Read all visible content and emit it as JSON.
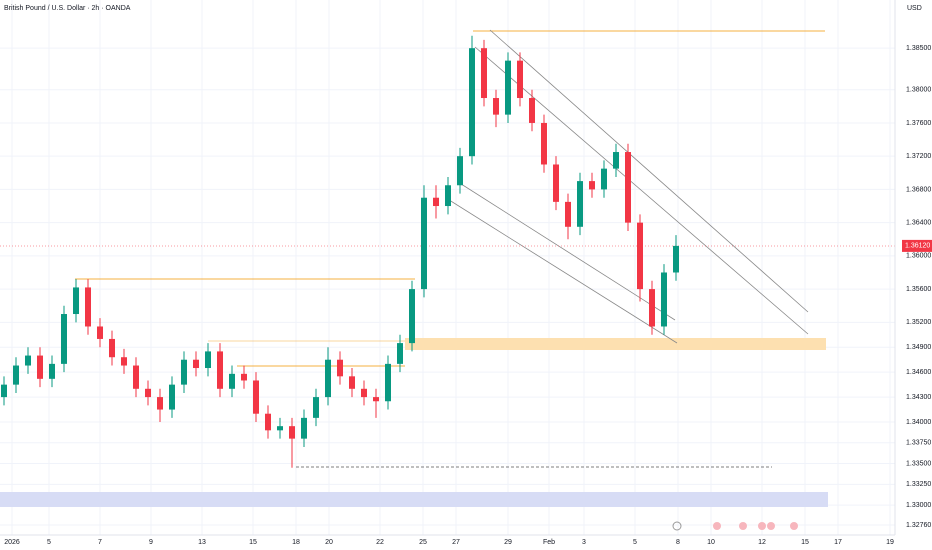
{
  "chart_data": {
    "type": "candlestick",
    "title": "British Pound / U.S. Dollar · 2h · OANDA",
    "currency": "USD",
    "last_price": {
      "value": 1.3612,
      "label": "1.36120"
    },
    "up_color": "#089981",
    "down_color": "#f23645",
    "xlim": [
      0,
      35.8
    ],
    "xticks": [
      {
        "value": 0.48,
        "label": "2026"
      },
      {
        "value": 1.96,
        "label": "5"
      },
      {
        "value": 4,
        "label": "7"
      },
      {
        "value": 6.04,
        "label": "9"
      },
      {
        "value": 8.08,
        "label": "13"
      },
      {
        "value": 10.12,
        "label": "15"
      },
      {
        "value": 11.84,
        "label": "18"
      },
      {
        "value": 13.16,
        "label": "20"
      },
      {
        "value": 15.2,
        "label": "22"
      },
      {
        "value": 16.92,
        "label": "25"
      },
      {
        "value": 18.24,
        "label": "27"
      },
      {
        "value": 20.32,
        "label": "29"
      },
      {
        "value": 21.96,
        "label": "Feb"
      },
      {
        "value": 23.36,
        "label": "3"
      },
      {
        "value": 25.4,
        "label": "5"
      },
      {
        "value": 27.12,
        "label": "8"
      },
      {
        "value": 28.44,
        "label": "10"
      },
      {
        "value": 30.48,
        "label": "12"
      },
      {
        "value": 32.2,
        "label": "15"
      },
      {
        "value": 33.52,
        "label": "17"
      },
      {
        "value": 35.6,
        "label": "19"
      }
    ],
    "ylim": [
      1.3264,
      1.3908
    ],
    "yticks": [
      {
        "value": 1.385,
        "label": "1.38500"
      },
      {
        "value": 1.38,
        "label": "1.38000"
      },
      {
        "value": 1.376,
        "label": "1.37600"
      },
      {
        "value": 1.372,
        "label": "1.37200"
      },
      {
        "value": 1.368,
        "label": "1.36800"
      },
      {
        "value": 1.364,
        "label": "1.36400"
      },
      {
        "value": 1.36,
        "label": "1.36000"
      },
      {
        "value": 1.356,
        "label": "1.35600"
      },
      {
        "value": 1.352,
        "label": "1.35200"
      },
      {
        "value": 1.349,
        "label": "1.34900"
      },
      {
        "value": 1.346,
        "label": "1.34600"
      },
      {
        "value": 1.343,
        "label": "1.34300"
      },
      {
        "value": 1.34,
        "label": "1.34000"
      },
      {
        "value": 1.3375,
        "label": "1.33750"
      },
      {
        "value": 1.335,
        "label": "1.33500"
      },
      {
        "value": 1.3325,
        "label": "1.33250"
      },
      {
        "value": 1.33,
        "label": "1.33000"
      },
      {
        "value": 1.3276,
        "label": "1.32760"
      }
    ],
    "grid": true,
    "x": [
      0.16,
      0.64,
      1.12,
      1.6,
      2.08,
      2.56,
      3.04,
      3.52,
      4,
      4.48,
      4.96,
      5.44,
      5.92,
      6.4,
      6.88,
      7.36,
      7.84,
      8.32,
      8.8,
      9.28,
      9.76,
      10.24,
      10.72,
      11.2,
      11.68,
      12.16,
      12.64,
      13.12,
      13.6,
      14.08,
      14.56,
      15.04,
      15.52,
      16,
      16.48,
      16.96,
      17.44,
      17.92,
      18.4,
      18.88,
      19.36,
      19.84,
      20.32,
      20.8,
      21.28,
      21.76,
      22.24,
      22.72,
      23.2,
      23.68,
      24.16,
      24.64,
      25.12,
      25.6,
      26.08,
      26.56,
      27.04
    ],
    "open": [
      1.343,
      1.3445,
      1.3468,
      1.348,
      1.3452,
      1.347,
      1.353,
      1.3562,
      1.3515,
      1.35,
      1.3478,
      1.3468,
      1.344,
      1.343,
      1.3415,
      1.3445,
      1.3475,
      1.3465,
      1.3485,
      1.344,
      1.3458,
      1.345,
      1.341,
      1.339,
      1.3395,
      1.338,
      1.3405,
      1.343,
      1.3475,
      1.3455,
      1.344,
      1.343,
      1.3425,
      1.347,
      1.3495,
      1.356,
      1.367,
      1.366,
      1.3685,
      1.372,
      1.385,
      1.379,
      1.377,
      1.3835,
      1.379,
      1.376,
      1.371,
      1.3665,
      1.3635,
      1.369,
      1.368,
      1.3705,
      1.3725,
      1.364,
      1.356,
      1.3515,
      1.358
    ],
    "high": [
      1.3455,
      1.3478,
      1.349,
      1.349,
      1.348,
      1.354,
      1.3572,
      1.3572,
      1.3525,
      1.351,
      1.3488,
      1.3478,
      1.345,
      1.344,
      1.3455,
      1.3485,
      1.3485,
      1.3495,
      1.3495,
      1.3468,
      1.3468,
      1.346,
      1.342,
      1.3405,
      1.3405,
      1.3415,
      1.344,
      1.349,
      1.3485,
      1.3465,
      1.345,
      1.344,
      1.348,
      1.3505,
      1.357,
      1.3685,
      1.3685,
      1.3695,
      1.373,
      1.3865,
      1.386,
      1.38,
      1.3845,
      1.3845,
      1.38,
      1.377,
      1.372,
      1.3675,
      1.37,
      1.37,
      1.3715,
      1.3735,
      1.3735,
      1.365,
      1.357,
      1.359,
      1.3625
    ],
    "low": [
      1.342,
      1.3435,
      1.3458,
      1.3442,
      1.3442,
      1.346,
      1.352,
      1.3505,
      1.349,
      1.3468,
      1.3458,
      1.343,
      1.342,
      1.34,
      1.3405,
      1.3435,
      1.3455,
      1.3455,
      1.343,
      1.343,
      1.344,
      1.34,
      1.338,
      1.338,
      1.3345,
      1.337,
      1.3395,
      1.342,
      1.3445,
      1.343,
      1.342,
      1.3405,
      1.3415,
      1.346,
      1.3485,
      1.355,
      1.3645,
      1.365,
      1.3675,
      1.371,
      1.378,
      1.3755,
      1.376,
      1.378,
      1.375,
      1.37,
      1.3655,
      1.362,
      1.3625,
      1.367,
      1.367,
      1.3695,
      1.363,
      1.3545,
      1.3505,
      1.3505,
      1.357
    ],
    "close": [
      1.3445,
      1.3468,
      1.348,
      1.3452,
      1.347,
      1.353,
      1.3562,
      1.3515,
      1.35,
      1.3478,
      1.3468,
      1.344,
      1.343,
      1.3415,
      1.3445,
      1.3475,
      1.3465,
      1.3485,
      1.344,
      1.3458,
      1.345,
      1.341,
      1.339,
      1.3395,
      1.338,
      1.3405,
      1.343,
      1.3475,
      1.3455,
      1.344,
      1.343,
      1.3425,
      1.347,
      1.3495,
      1.356,
      1.367,
      1.366,
      1.3685,
      1.372,
      1.385,
      1.379,
      1.377,
      1.3835,
      1.379,
      1.376,
      1.371,
      1.3665,
      1.3635,
      1.369,
      1.368,
      1.3705,
      1.3725,
      1.364,
      1.356,
      1.3515,
      1.358,
      1.3612
    ]
  }
}
